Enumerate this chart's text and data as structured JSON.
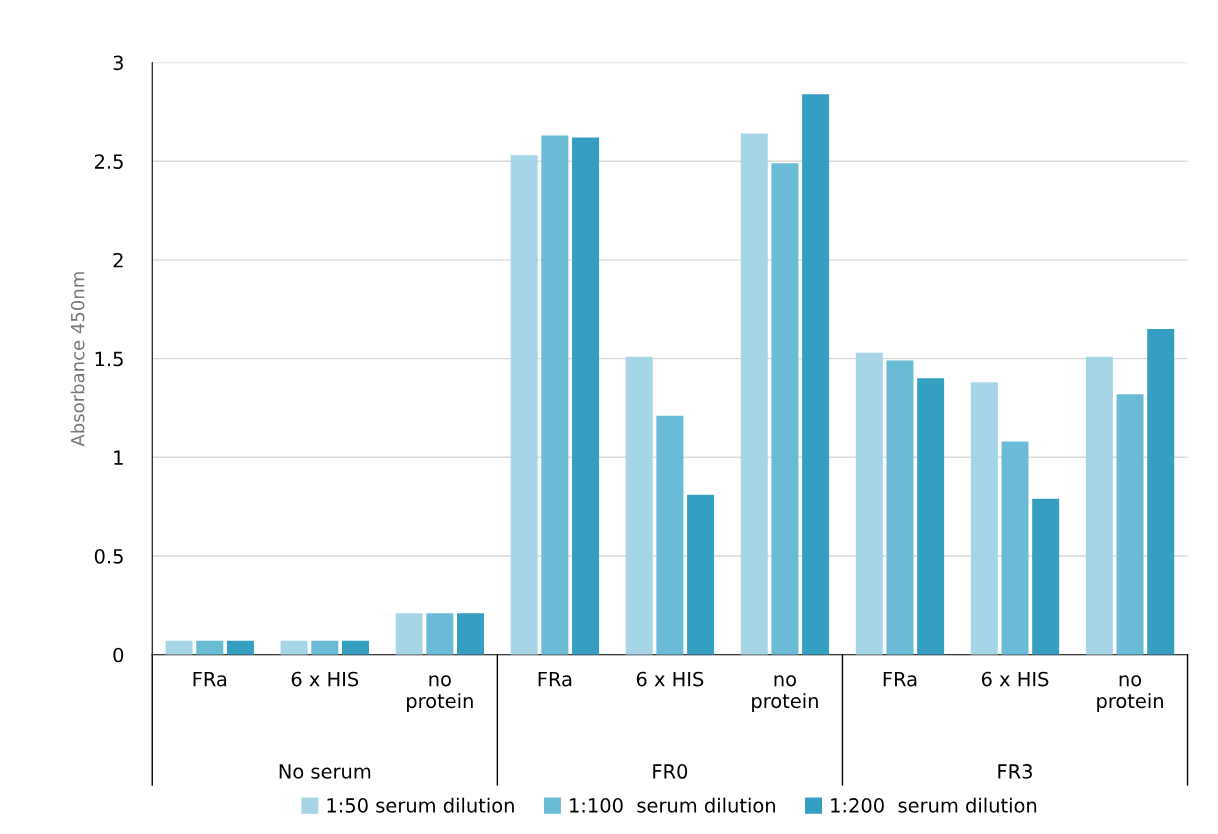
{
  "chart_data": {
    "type": "bar",
    "ylabel": "Absorbance 450nm",
    "categories": [
      "FRa",
      "6 x HIS",
      "no\nprotein",
      "FRa",
      "6 x HIS",
      "no\nprotein",
      "FRa",
      "6 x HIS",
      "no\nprotein"
    ],
    "annotations": [
      "No serum",
      "FR0",
      "FR3"
    ],
    "series": [
      {
        "name": "1:50 serum dilution",
        "color": "#a5d5e6",
        "values": [
          0.07,
          0.07,
          0.21,
          2.53,
          1.51,
          2.64,
          1.53,
          1.38,
          1.51
        ]
      },
      {
        "name": "1:100  serum dilution",
        "color": "#69bbd6",
        "values": [
          0.07,
          0.07,
          0.21,
          2.63,
          1.21,
          2.49,
          1.49,
          1.08,
          1.32
        ]
      },
      {
        "name": "1:200  serum dilution",
        "color": "#359fc1",
        "values": [
          0.07,
          0.07,
          0.21,
          2.62,
          0.81,
          2.84,
          1.4,
          0.79,
          1.65
        ]
      }
    ],
    "ylim": [
      0,
      3
    ],
    "yticks": [
      0,
      0.5,
      1,
      1.5,
      2,
      2.5,
      3
    ],
    "grid": "y",
    "legend": "bottom"
  }
}
